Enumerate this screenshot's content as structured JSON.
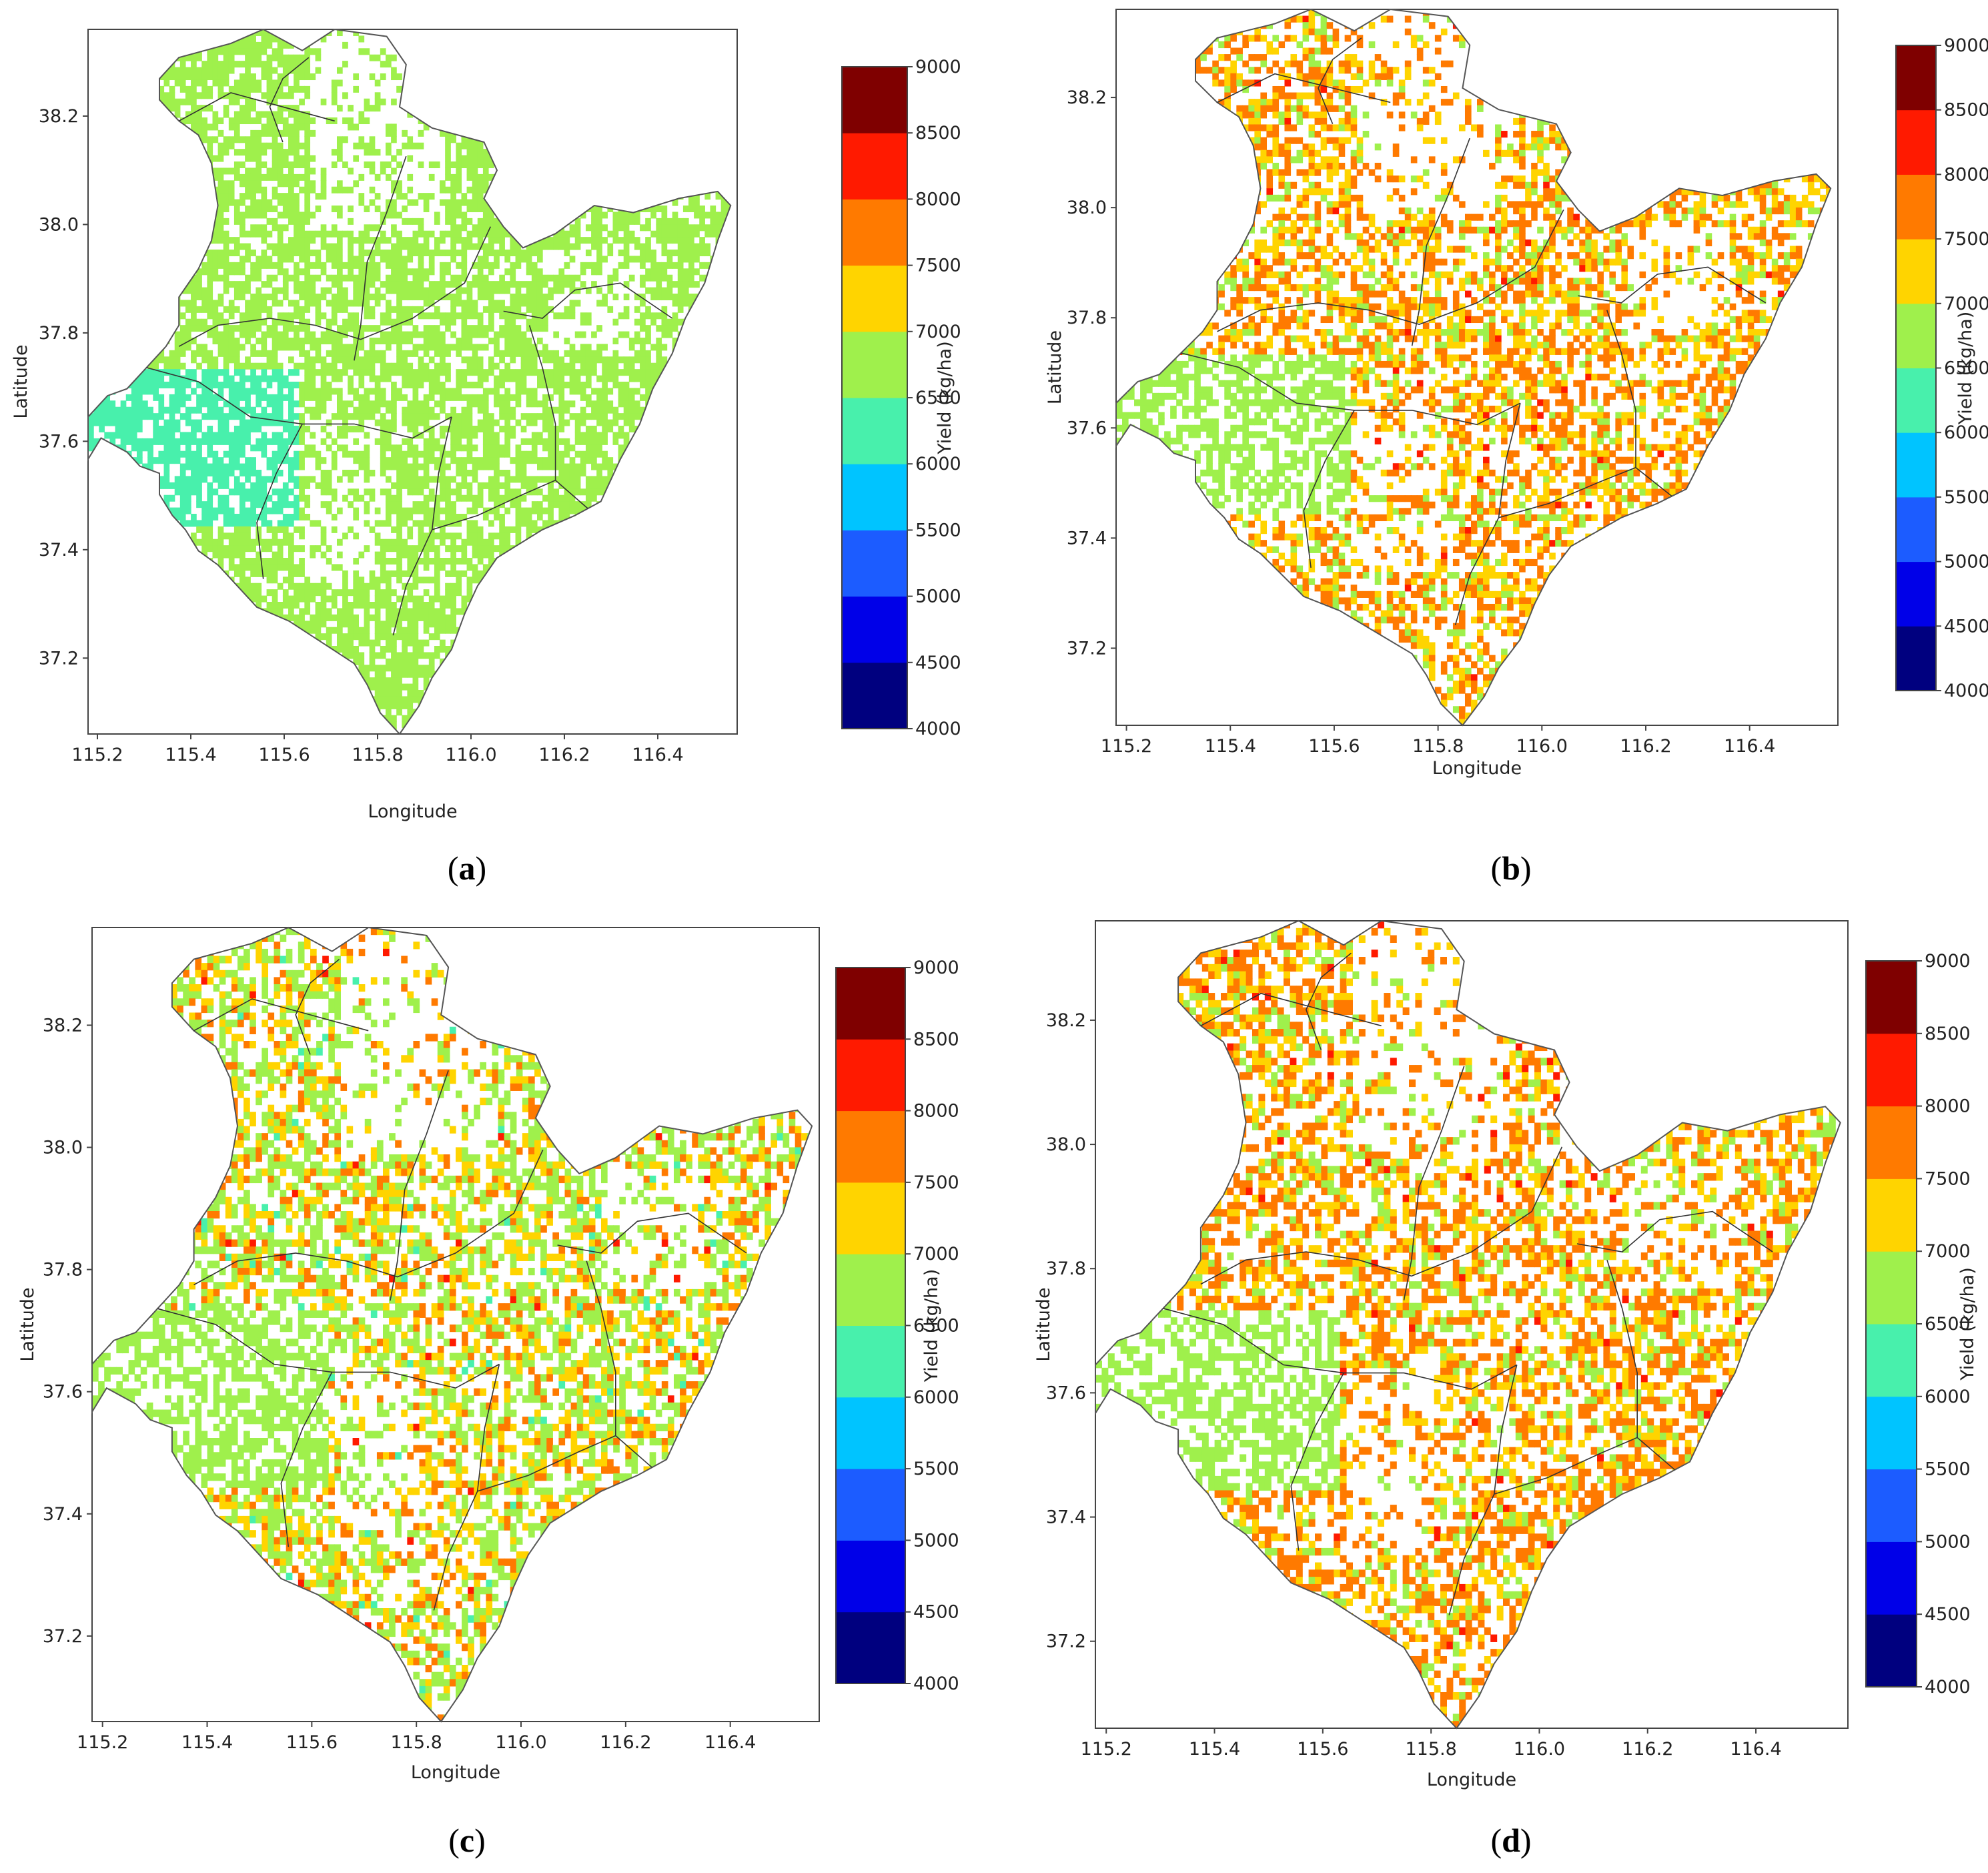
{
  "figure_caption_labels": [
    "a",
    "b",
    "c",
    "d"
  ],
  "colors": {
    "ocean_blue": "#0d7de0",
    "scale": [
      "#00007f",
      "#0000e8",
      "#1c5cff",
      "#00c4ff",
      "#48f0ac",
      "#9ff04c",
      "#ffd400",
      "#ff7a00",
      "#ff1a00",
      "#7f0000"
    ],
    "region_outline": "#555555",
    "axis": "#444444"
  },
  "chart_data": [
    {
      "type": "heatmap",
      "panel": "a",
      "xlabel": "Longitude",
      "ylabel": "Latitude",
      "xticks": [
        "115.2",
        "115.4",
        "115.6",
        "115.8",
        "116.0",
        "116.2",
        "116.4"
      ],
      "yticks": [
        "37.2",
        "37.4",
        "37.6",
        "37.8",
        "38.0",
        "38.2"
      ],
      "xlim": [
        115.18,
        116.57
      ],
      "ylim": [
        37.06,
        38.36
      ],
      "colorbar": {
        "label": "Yield (kg/ha)",
        "ticks": [
          "4000",
          "4500",
          "5000",
          "5500",
          "6000",
          "6500",
          "7000",
          "7500",
          "8000",
          "8500",
          "9000"
        ],
        "range": [
          4000,
          9000
        ]
      },
      "value_weights": {
        "6250": 0.0,
        "6750": 1.0,
        "7250": 0.0,
        "7750": 0.0,
        "8250": 0.0
      },
      "west_zone_value": 6250,
      "density": 0.72,
      "seed": 11
    },
    {
      "type": "heatmap",
      "panel": "b",
      "xlabel": "Longitude",
      "ylabel": "Latitude",
      "xticks": [
        "115.2",
        "115.4",
        "115.6",
        "115.8",
        "116.0",
        "116.2",
        "116.4"
      ],
      "yticks": [
        "37.2",
        "37.4",
        "37.6",
        "37.8",
        "38.0",
        "38.2"
      ],
      "xlim": [
        115.18,
        116.57
      ],
      "ylim": [
        37.06,
        38.36
      ],
      "colorbar": {
        "label": "Yield (kg/ha)",
        "ticks": [
          "4000",
          "4500",
          "5000",
          "5500",
          "6000",
          "6500",
          "7000",
          "7500",
          "8000",
          "8500",
          "9000"
        ],
        "range": [
          4000,
          9000
        ]
      },
      "value_weights": {
        "6250": 0.0,
        "6750": 0.18,
        "7250": 0.34,
        "7750": 0.46,
        "8250": 0.02
      },
      "west_zone_value": 6750,
      "density": 0.55,
      "seed": 23
    },
    {
      "type": "heatmap",
      "panel": "c",
      "xlabel": "Longitude",
      "ylabel": "Latitude",
      "xticks": [
        "115.2",
        "115.4",
        "115.6",
        "115.8",
        "116.0",
        "116.2",
        "116.4"
      ],
      "yticks": [
        "37.2",
        "37.4",
        "37.6",
        "37.8",
        "38.0",
        "38.2"
      ],
      "xlim": [
        115.18,
        116.57
      ],
      "ylim": [
        37.06,
        38.36
      ],
      "colorbar": {
        "label": "Yield (kg/ha)",
        "ticks": [
          "4000",
          "4500",
          "5000",
          "5500",
          "6000",
          "6500",
          "7000",
          "7500",
          "8000",
          "8500",
          "9000"
        ],
        "range": [
          4000,
          9000
        ]
      },
      "value_weights": {
        "6250": 0.02,
        "6750": 0.5,
        "7250": 0.28,
        "7750": 0.19,
        "8250": 0.01
      },
      "west_zone_value": 6750,
      "density": 0.58,
      "seed": 37
    },
    {
      "type": "heatmap",
      "panel": "d",
      "xlabel": "Longitude",
      "ylabel": "Latitude",
      "xticks": [
        "115.2",
        "115.4",
        "115.6",
        "115.8",
        "116.0",
        "116.2",
        "116.4"
      ],
      "yticks": [
        "37.2",
        "37.4",
        "37.6",
        "37.8",
        "38.0",
        "38.2"
      ],
      "xlim": [
        115.18,
        116.57
      ],
      "ylim": [
        37.06,
        38.36
      ],
      "colorbar": {
        "label": "Yield (kg/ha)",
        "ticks": [
          "4000",
          "4500",
          "5000",
          "5500",
          "6000",
          "6500",
          "7000",
          "7500",
          "8000",
          "8500",
          "9000"
        ],
        "range": [
          4000,
          9000
        ]
      },
      "value_weights": {
        "6250": 0.0,
        "6750": 0.2,
        "7250": 0.3,
        "7750": 0.48,
        "8250": 0.02
      },
      "west_zone_value": 6750,
      "density": 0.56,
      "seed": 53
    }
  ]
}
